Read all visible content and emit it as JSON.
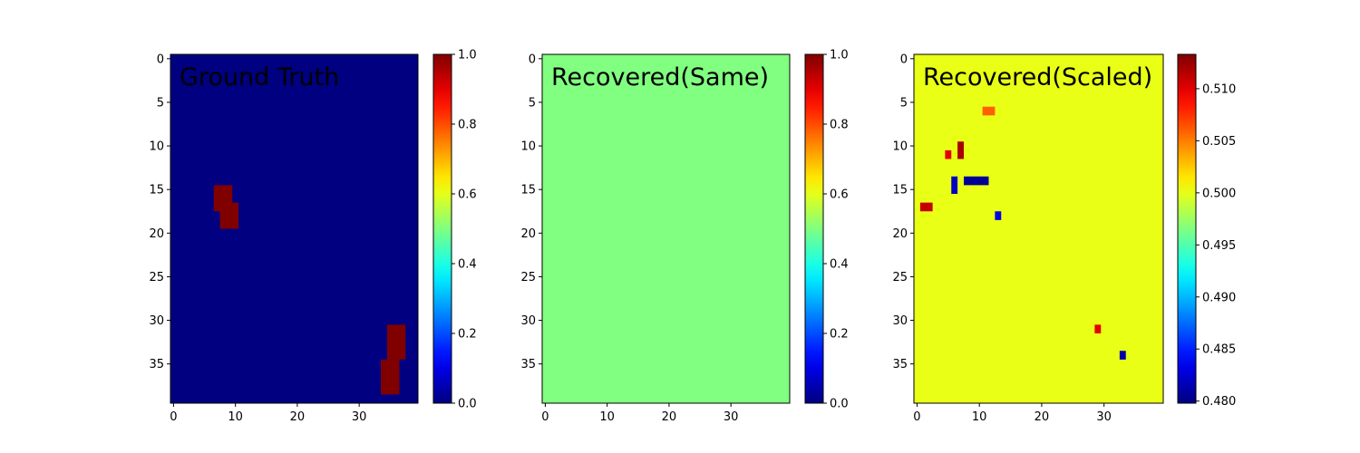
{
  "chart_data": [
    {
      "type": "heatmap",
      "title": "Ground Truth",
      "colormap": "jet",
      "grid": false,
      "shape": [
        40,
        40
      ],
      "x_ticks": [
        0,
        10,
        20,
        30
      ],
      "y_ticks": [
        0,
        5,
        10,
        15,
        20,
        25,
        30,
        35
      ],
      "background_value": 0.0,
      "rects": [
        {
          "x0": 7,
          "x1": 10,
          "y0": 15,
          "y1": 18,
          "value": 1.0
        },
        {
          "x0": 8,
          "x1": 11,
          "y0": 17,
          "y1": 20,
          "value": 1.0
        },
        {
          "x0": 35,
          "x1": 38,
          "y0": 31,
          "y1": 35,
          "value": 1.0
        },
        {
          "x0": 34,
          "x1": 37,
          "y0": 35,
          "y1": 39,
          "value": 1.0
        }
      ],
      "colorbar": {
        "min": 0.0,
        "max": 1.0,
        "ticks": [
          0.0,
          0.2,
          0.4,
          0.6,
          0.8,
          1.0
        ],
        "tick_labels": [
          "0.0",
          "0.2",
          "0.4",
          "0.6",
          "0.8",
          "1.0"
        ]
      }
    },
    {
      "type": "heatmap",
      "title": "Recovered(Same)",
      "colormap": "jet",
      "grid": false,
      "shape": [
        40,
        40
      ],
      "x_ticks": [
        0,
        10,
        20,
        30
      ],
      "y_ticks": [
        0,
        5,
        10,
        15,
        20,
        25,
        30,
        35
      ],
      "background_value": 0.5,
      "rects": [],
      "colorbar": {
        "min": 0.0,
        "max": 1.0,
        "ticks": [
          0.0,
          0.2,
          0.4,
          0.6,
          0.8,
          1.0
        ],
        "tick_labels": [
          "0.0",
          "0.2",
          "0.4",
          "0.6",
          "0.8",
          "1.0"
        ]
      }
    },
    {
      "type": "heatmap",
      "title": "Recovered(Scaled)",
      "colormap": "jet",
      "grid": false,
      "shape": [
        40,
        40
      ],
      "x_ticks": [
        0,
        10,
        20,
        30
      ],
      "y_ticks": [
        0,
        5,
        10,
        15,
        20,
        25,
        30,
        35
      ],
      "background_value": 0.5,
      "rects": [
        {
          "x0": 8,
          "x1": 12,
          "y0": 14,
          "y1": 15,
          "value": 0.4805
        },
        {
          "x0": 6,
          "x1": 7,
          "y0": 14,
          "y1": 16,
          "value": 0.482
        },
        {
          "x0": 13,
          "x1": 14,
          "y0": 18,
          "y1": 19,
          "value": 0.483
        },
        {
          "x0": 33,
          "x1": 34,
          "y0": 34,
          "y1": 35,
          "value": 0.481
        },
        {
          "x0": 5,
          "x1": 6,
          "y0": 11,
          "y1": 12,
          "value": 0.51
        },
        {
          "x0": 7,
          "x1": 8,
          "y0": 10,
          "y1": 12,
          "value": 0.512
        },
        {
          "x0": 1,
          "x1": 3,
          "y0": 17,
          "y1": 18,
          "value": 0.511
        },
        {
          "x0": 29,
          "x1": 30,
          "y0": 31,
          "y1": 32,
          "value": 0.51
        },
        {
          "x0": 11,
          "x1": 13,
          "y0": 6,
          "y1": 7,
          "value": 0.506
        }
      ],
      "colorbar": {
        "min": 0.4798,
        "max": 0.5133,
        "ticks": [
          0.48,
          0.485,
          0.49,
          0.495,
          0.5,
          0.505,
          0.51
        ],
        "tick_labels": [
          "0.480",
          "0.485",
          "0.490",
          "0.495",
          "0.500",
          "0.505",
          "0.510"
        ]
      }
    }
  ]
}
